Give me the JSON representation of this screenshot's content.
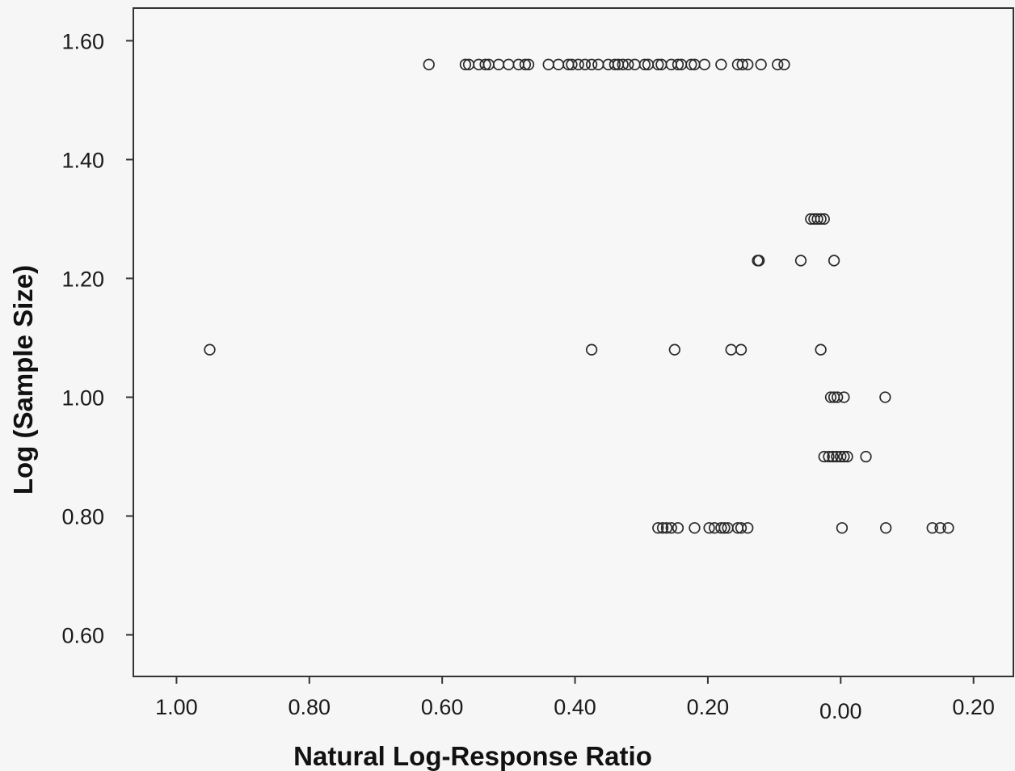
{
  "chart_data": {
    "type": "scatter",
    "title": "",
    "xlabel": "Natural Log-Response Ratio",
    "ylabel": "Log (Sample Size)",
    "x_tick_labels": [
      "1.00",
      "0.80",
      "0.60",
      "0.40",
      "0.20",
      "0.00",
      "0.20"
    ],
    "y_tick_labels": [
      "1.60",
      "1.40",
      "1.20",
      "1.00",
      "0.80",
      "0.60"
    ],
    "x_ticks": [
      -1.0,
      -0.8,
      -0.6,
      -0.4,
      -0.2,
      0.0,
      0.2
    ],
    "y_ticks": [
      1.6,
      1.4,
      1.2,
      1.0,
      0.8,
      0.6
    ],
    "xlim": [
      -1.065,
      0.26
    ],
    "ylim": [
      0.53,
      1.655
    ],
    "grid": false,
    "colors": {
      "background": "#f6f6f6",
      "axis": "#333333",
      "marker": "#2a2a2a"
    },
    "series": [
      {
        "marker": "open-circle",
        "points": [
          {
            "x": -0.62,
            "y": 1.56
          },
          {
            "x": -0.565,
            "y": 1.56
          },
          {
            "x": -0.56,
            "y": 1.56
          },
          {
            "x": -0.545,
            "y": 1.56
          },
          {
            "x": -0.535,
            "y": 1.56
          },
          {
            "x": -0.53,
            "y": 1.56
          },
          {
            "x": -0.515,
            "y": 1.56
          },
          {
            "x": -0.5,
            "y": 1.56
          },
          {
            "x": -0.485,
            "y": 1.56
          },
          {
            "x": -0.475,
            "y": 1.56
          },
          {
            "x": -0.47,
            "y": 1.56
          },
          {
            "x": -0.44,
            "y": 1.56
          },
          {
            "x": -0.425,
            "y": 1.56
          },
          {
            "x": -0.41,
            "y": 1.56
          },
          {
            "x": -0.405,
            "y": 1.56
          },
          {
            "x": -0.395,
            "y": 1.56
          },
          {
            "x": -0.385,
            "y": 1.56
          },
          {
            "x": -0.375,
            "y": 1.56
          },
          {
            "x": -0.365,
            "y": 1.56
          },
          {
            "x": -0.35,
            "y": 1.56
          },
          {
            "x": -0.34,
            "y": 1.56
          },
          {
            "x": -0.335,
            "y": 1.56
          },
          {
            "x": -0.328,
            "y": 1.56
          },
          {
            "x": -0.32,
            "y": 1.56
          },
          {
            "x": -0.31,
            "y": 1.56
          },
          {
            "x": -0.295,
            "y": 1.56
          },
          {
            "x": -0.29,
            "y": 1.56
          },
          {
            "x": -0.275,
            "y": 1.56
          },
          {
            "x": -0.27,
            "y": 1.56
          },
          {
            "x": -0.255,
            "y": 1.56
          },
          {
            "x": -0.245,
            "y": 1.56
          },
          {
            "x": -0.24,
            "y": 1.56
          },
          {
            "x": -0.225,
            "y": 1.56
          },
          {
            "x": -0.22,
            "y": 1.56
          },
          {
            "x": -0.205,
            "y": 1.56
          },
          {
            "x": -0.18,
            "y": 1.56
          },
          {
            "x": -0.155,
            "y": 1.56
          },
          {
            "x": -0.148,
            "y": 1.56
          },
          {
            "x": -0.14,
            "y": 1.56
          },
          {
            "x": -0.12,
            "y": 1.56
          },
          {
            "x": -0.095,
            "y": 1.56
          },
          {
            "x": -0.085,
            "y": 1.56
          },
          {
            "x": -0.045,
            "y": 1.3
          },
          {
            "x": -0.04,
            "y": 1.3
          },
          {
            "x": -0.035,
            "y": 1.3
          },
          {
            "x": -0.03,
            "y": 1.3
          },
          {
            "x": -0.025,
            "y": 1.3
          },
          {
            "x": -0.125,
            "y": 1.23
          },
          {
            "x": -0.123,
            "y": 1.23
          },
          {
            "x": -0.06,
            "y": 1.23
          },
          {
            "x": -0.01,
            "y": 1.23
          },
          {
            "x": -0.95,
            "y": 1.08
          },
          {
            "x": -0.375,
            "y": 1.08
          },
          {
            "x": -0.25,
            "y": 1.08
          },
          {
            "x": -0.165,
            "y": 1.08
          },
          {
            "x": -0.15,
            "y": 1.08
          },
          {
            "x": -0.03,
            "y": 1.08
          },
          {
            "x": -0.015,
            "y": 1.0
          },
          {
            "x": -0.01,
            "y": 1.0
          },
          {
            "x": -0.005,
            "y": 1.0
          },
          {
            "x": 0.005,
            "y": 1.0
          },
          {
            "x": 0.067,
            "y": 1.0
          },
          {
            "x": -0.025,
            "y": 0.9
          },
          {
            "x": -0.018,
            "y": 0.9
          },
          {
            "x": -0.012,
            "y": 0.9
          },
          {
            "x": -0.006,
            "y": 0.9
          },
          {
            "x": 0.0,
            "y": 0.9
          },
          {
            "x": 0.005,
            "y": 0.9
          },
          {
            "x": 0.01,
            "y": 0.9
          },
          {
            "x": 0.038,
            "y": 0.9
          },
          {
            "x": -0.275,
            "y": 0.78
          },
          {
            "x": -0.268,
            "y": 0.78
          },
          {
            "x": -0.262,
            "y": 0.78
          },
          {
            "x": -0.255,
            "y": 0.78
          },
          {
            "x": -0.245,
            "y": 0.78
          },
          {
            "x": -0.22,
            "y": 0.78
          },
          {
            "x": -0.198,
            "y": 0.78
          },
          {
            "x": -0.19,
            "y": 0.78
          },
          {
            "x": -0.18,
            "y": 0.78
          },
          {
            "x": -0.175,
            "y": 0.78
          },
          {
            "x": -0.17,
            "y": 0.78
          },
          {
            "x": -0.155,
            "y": 0.78
          },
          {
            "x": -0.15,
            "y": 0.78
          },
          {
            "x": -0.14,
            "y": 0.78
          },
          {
            "x": 0.002,
            "y": 0.78
          },
          {
            "x": 0.068,
            "y": 0.78
          },
          {
            "x": 0.138,
            "y": 0.78
          },
          {
            "x": 0.15,
            "y": 0.78
          },
          {
            "x": 0.162,
            "y": 0.78
          }
        ]
      }
    ]
  }
}
